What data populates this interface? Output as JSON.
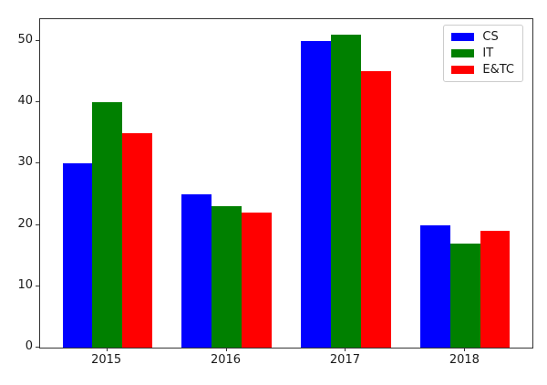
{
  "chart_data": {
    "type": "bar",
    "title": "",
    "xlabel": "",
    "ylabel": "",
    "categories": [
      "2015",
      "2016",
      "2017",
      "2018"
    ],
    "series": [
      {
        "name": "CS",
        "color": "#0000ff",
        "values": [
          30,
          25,
          50,
          20
        ]
      },
      {
        "name": "IT",
        "color": "#008000",
        "values": [
          40,
          23,
          51,
          17
        ]
      },
      {
        "name": "E&TC",
        "color": "#ff0000",
        "values": [
          35,
          22,
          45,
          19
        ]
      }
    ],
    "yticks": [
      0,
      10,
      20,
      30,
      40,
      50
    ],
    "ylim": [
      0,
      53.55
    ],
    "grid": false,
    "legend": {
      "position": "upper-right",
      "entries": [
        "CS",
        "IT",
        "E&TC"
      ]
    }
  }
}
